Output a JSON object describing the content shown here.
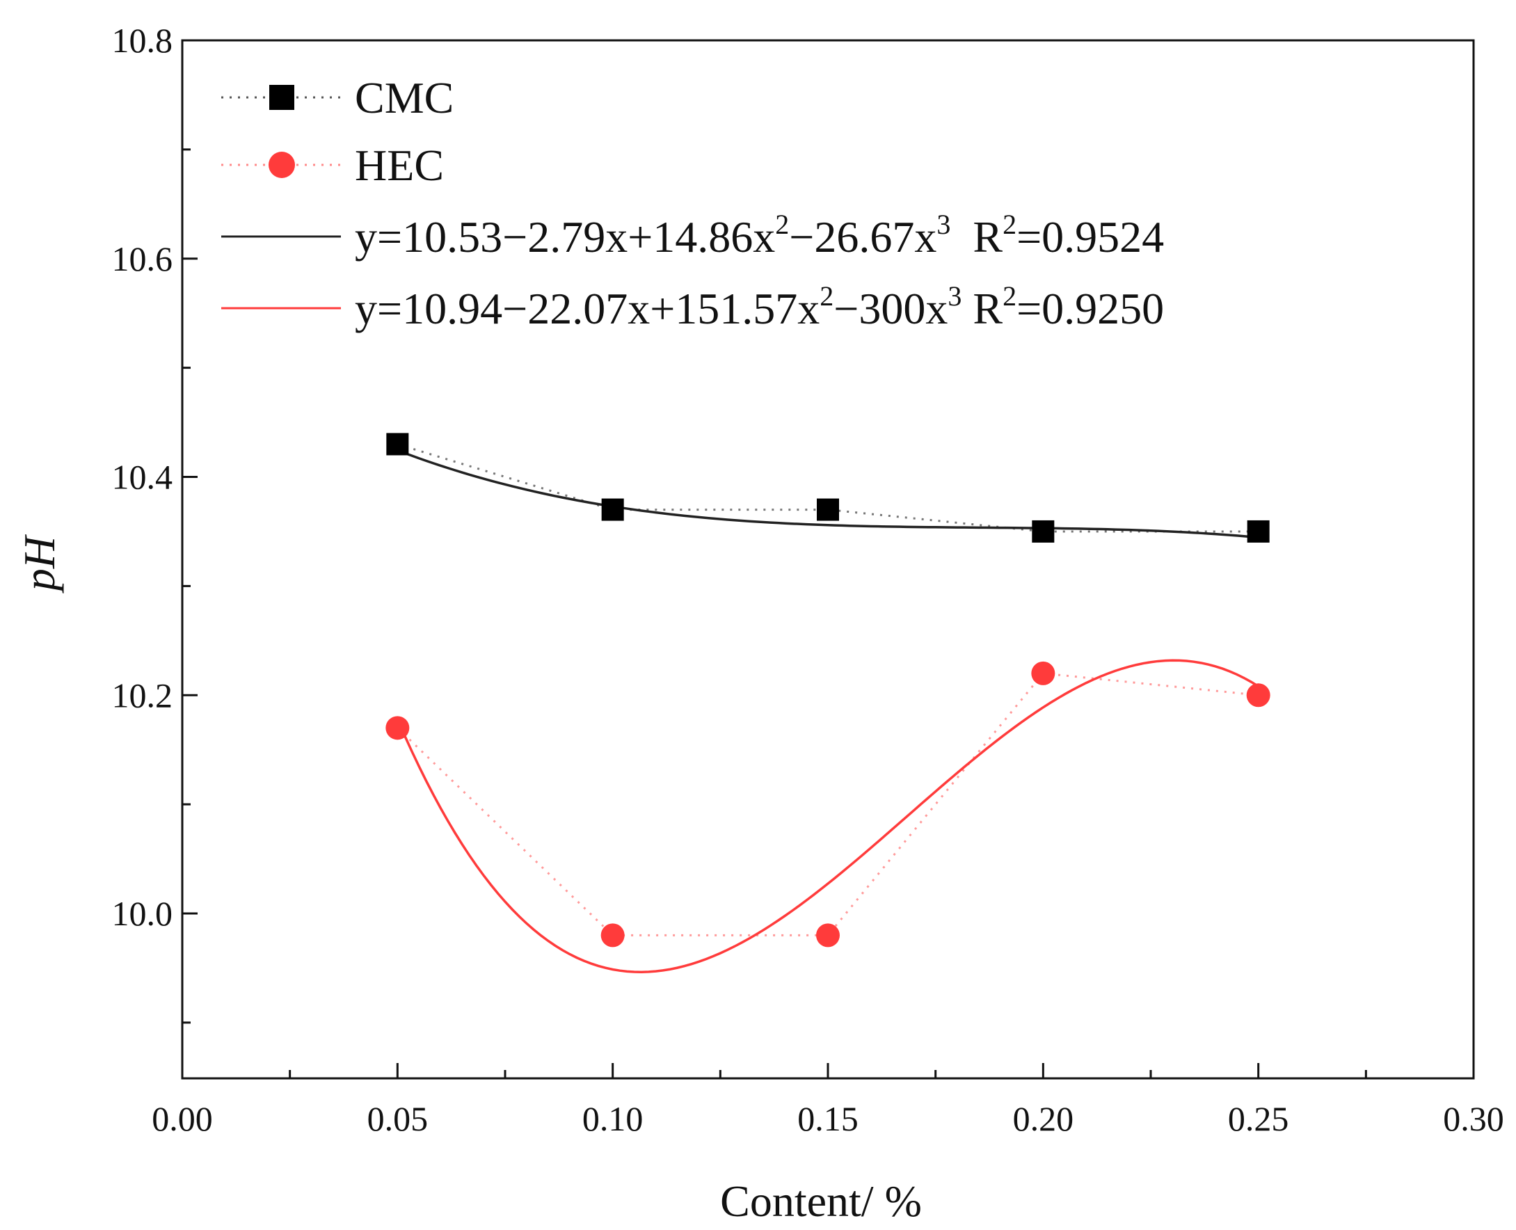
{
  "chart_data": {
    "type": "scatter",
    "title": "",
    "xlabel": "Content/ %",
    "ylabel": "pH",
    "xlim": [
      0.0,
      0.3
    ],
    "ylim": [
      9.85,
      10.8
    ],
    "x_ticks": [
      0.0,
      0.05,
      0.1,
      0.15,
      0.2,
      0.25,
      0.3
    ],
    "x_tick_labels": [
      "0.00",
      "0.05",
      "0.10",
      "0.15",
      "0.20",
      "0.25",
      "0.30"
    ],
    "y_ticks": [
      10.0,
      10.2,
      10.4,
      10.6,
      10.8
    ],
    "y_tick_labels": [
      "10.0",
      "10.2",
      "10.4",
      "10.6",
      "10.8"
    ],
    "grid": false,
    "legend_position": "top-left",
    "series": [
      {
        "name": "CMC",
        "marker": "square",
        "color": "#000000",
        "line_style": "dotted",
        "x": [
          0.05,
          0.1,
          0.15,
          0.2,
          0.25
        ],
        "y": [
          10.43,
          10.37,
          10.37,
          10.35,
          10.35
        ]
      },
      {
        "name": "HEC",
        "marker": "circle",
        "color": "#ff3b3b",
        "line_style": "dotted",
        "x": [
          0.05,
          0.1,
          0.15,
          0.2,
          0.25
        ],
        "y": [
          10.17,
          9.98,
          9.98,
          10.22,
          10.2
        ]
      }
    ],
    "fits": [
      {
        "name": "CMC fit",
        "color": "#222222",
        "coefficients": [
          10.53,
          -2.79,
          14.86,
          -26.67
        ],
        "x_range": [
          0.05,
          0.25
        ],
        "label": {
          "eq_main": "y=10.53−2.79x+14.86x",
          "exp1": "2",
          "eq_mid": "−26.67x",
          "exp2": "3",
          "r_prefix": "  R",
          "r_exp": "2",
          "r_value": "=0.9524"
        }
      },
      {
        "name": "HEC fit",
        "color": "#ff3b3b",
        "coefficients": [
          10.94,
          -22.07,
          151.57,
          -300
        ],
        "x_range": [
          0.05,
          0.25
        ],
        "label": {
          "eq_main": "y=10.94−22.07x+151.57x",
          "exp1": "2",
          "eq_mid": "−300x",
          "exp2": "3",
          "r_prefix": " R",
          "r_exp": "2",
          "r_value": "=0.9250"
        }
      }
    ]
  }
}
